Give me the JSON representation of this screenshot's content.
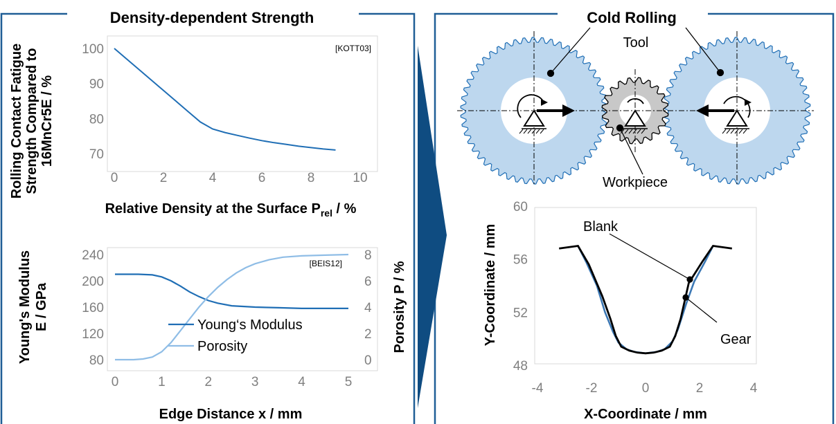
{
  "colors": {
    "panel_border": "#1f5e96",
    "line_dark": "#1f6eb5",
    "line_light": "#8fbde6",
    "tool_fill": "#bdd7ee",
    "workpiece_fill": "#c8c8c8",
    "arrow_dark": "#0f4c81",
    "gear_blue": "#3c78b4"
  },
  "left_panel": {
    "title": "Density-dependent Strength"
  },
  "right_panel": {
    "title": "Cold Rolling",
    "labels": {
      "tool": "Tool",
      "workpiece": "Workpiece"
    }
  },
  "chart_data": [
    {
      "type": "line",
      "ref_label": "[KOTT03]",
      "xlabel_main": "Relative Density at the Surface P",
      "xlabel_sub": "rel",
      "xlabel_tail": " / %",
      "ylabel_lines": [
        "Rolling Contact Fatigue",
        "Strength Compared to",
        "16MnCr5E / %"
      ],
      "xlim": [
        0,
        10
      ],
      "ylim": [
        70,
        100
      ],
      "x_ticks": [
        "0",
        "2",
        "4",
        "6",
        "8",
        "10"
      ],
      "y_ticks": [
        "70",
        "80",
        "90",
        "100"
      ],
      "series": [
        {
          "x": [
            0,
            0.5,
            1,
            1.5,
            2,
            2.5,
            3,
            3.5,
            4,
            4.5,
            5,
            5.5,
            6,
            6.5,
            7,
            7.5,
            8,
            8.5,
            9
          ],
          "values": [
            100,
            97,
            94,
            91,
            88,
            85,
            82,
            79,
            77,
            76,
            75.2,
            74.4,
            73.7,
            73.1,
            72.6,
            72.1,
            71.7,
            71.3,
            71
          ]
        }
      ]
    },
    {
      "type": "line",
      "ref_label": "[BEIS12]",
      "xlabel": "Edge Distance x / mm",
      "ylabel_lines": [
        "Young's Modulus",
        "E / GPa"
      ],
      "y2label": "Porosity P / %",
      "xlim": [
        0,
        5
      ],
      "ylim": [
        80,
        240
      ],
      "y2lim": [
        0,
        8
      ],
      "x_ticks": [
        "0",
        "1",
        "2",
        "3",
        "4",
        "5"
      ],
      "y_ticks": [
        "80",
        "120",
        "160",
        "200",
        "240"
      ],
      "y2_ticks": [
        "0",
        "2",
        "4",
        "6",
        "8"
      ],
      "series": [
        {
          "name": "Young‘s Modulus",
          "axis": "left",
          "x": [
            0,
            0.5,
            0.8,
            1,
            1.2,
            1.4,
            1.6,
            1.8,
            2,
            2.2,
            2.5,
            3,
            3.5,
            4,
            4.5,
            5
          ],
          "values": [
            210,
            210,
            209,
            206,
            200,
            192,
            183,
            176,
            170,
            166,
            162,
            160,
            159,
            158,
            158,
            158
          ]
        },
        {
          "name": "Porosity",
          "axis": "right",
          "x": [
            0,
            0.4,
            0.6,
            0.8,
            1,
            1.2,
            1.4,
            1.6,
            1.8,
            2,
            2.2,
            2.4,
            2.6,
            2.8,
            3,
            3.3,
            3.6,
            4,
            4.5,
            5
          ],
          "values": [
            0,
            0,
            0.05,
            0.2,
            0.6,
            1.3,
            2.2,
            3.1,
            4,
            4.8,
            5.5,
            6.1,
            6.6,
            7,
            7.3,
            7.6,
            7.8,
            7.9,
            7.95,
            8
          ]
        }
      ]
    },
    {
      "type": "line",
      "xlabel": "X-Coordinate / mm",
      "ylabel": "Y-Coordinate / mm",
      "xlim": [
        -4,
        4
      ],
      "ylim": [
        48,
        60
      ],
      "x_ticks": [
        "-4",
        "-2",
        "0",
        "2",
        "4"
      ],
      "y_ticks": [
        "48",
        "52",
        "56",
        "60"
      ],
      "series": [
        {
          "name": "Blank",
          "x": [
            -3.2,
            -2.5,
            -2.1,
            -1.6,
            -1.3,
            -1.1,
            -0.9,
            -0.6,
            -0.3,
            0,
            0.3,
            0.6,
            0.9,
            1.1,
            1.3,
            1.6,
            2.1,
            2.5,
            3.2
          ],
          "values": [
            56.8,
            57,
            55.6,
            53.2,
            51.5,
            50.2,
            49.4,
            49.1,
            48.95,
            48.9,
            48.95,
            49.1,
            49.4,
            50.2,
            51.5,
            54.2,
            55.8,
            57,
            56.8
          ]
        },
        {
          "name": "Gear",
          "x": [
            -2.5,
            -2.2,
            -1.8,
            -1.5,
            -1.2,
            -1,
            -0.7,
            -0.4,
            0,
            0.4,
            0.7,
            1,
            1.2,
            1.5,
            1.8,
            2.2,
            2.5
          ],
          "values": [
            57,
            55.8,
            54,
            52,
            50.5,
            49.7,
            49.2,
            49,
            48.9,
            49,
            49.2,
            49.8,
            50.7,
            52.6,
            54.3,
            55.8,
            57
          ]
        }
      ]
    }
  ]
}
